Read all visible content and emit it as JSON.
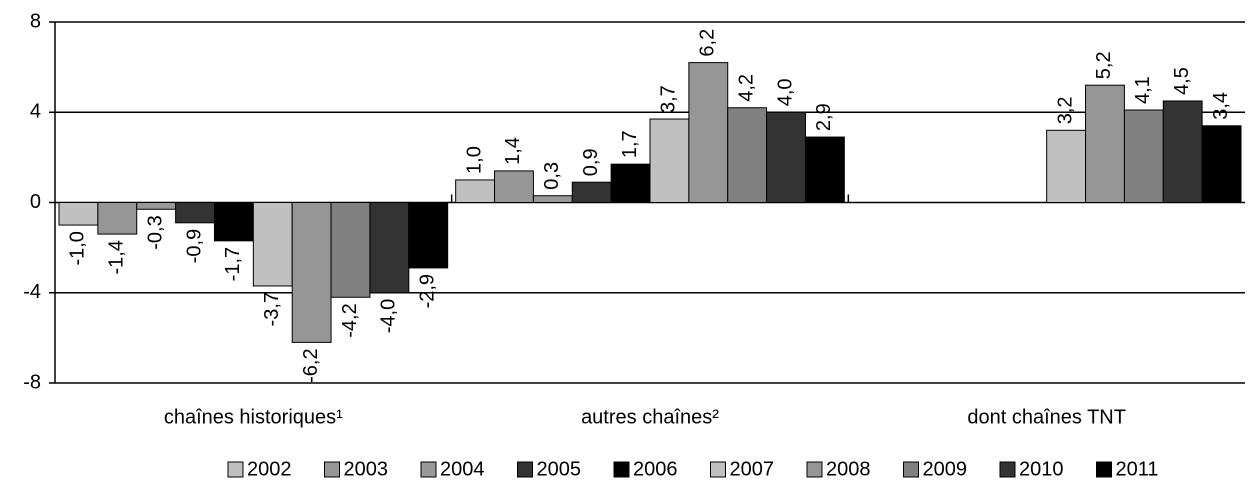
{
  "chart_data": {
    "type": "bar",
    "categories": [
      "chaînes historiques¹",
      "autres chaînes²",
      "dont chaînes TNT"
    ],
    "series": [
      {
        "name": "2002",
        "color": "#c0c0c0",
        "values": [
          -1.0,
          1.0,
          null
        ],
        "value_labels": [
          "-1,0",
          "1,0",
          null
        ]
      },
      {
        "name": "2003",
        "color": "#969696",
        "values": [
          -1.4,
          1.4,
          null
        ],
        "value_labels": [
          "-1,4",
          "1,4",
          null
        ]
      },
      {
        "name": "2004",
        "color": "#999999",
        "values": [
          -0.3,
          0.3,
          null
        ],
        "value_labels": [
          "-0,3",
          "0,3",
          null
        ]
      },
      {
        "name": "2005",
        "color": "#333333",
        "values": [
          -0.9,
          0.9,
          null
        ],
        "value_labels": [
          "-0,9",
          "0,9",
          null
        ]
      },
      {
        "name": "2006",
        "color": "#000000",
        "values": [
          -1.7,
          1.7,
          null
        ],
        "value_labels": [
          "-1,7",
          "1,7",
          null
        ]
      },
      {
        "name": "2007",
        "color": "#c0c0c0",
        "values": [
          -3.7,
          3.7,
          3.2
        ],
        "value_labels": [
          "-3,7",
          "3,7",
          "3,2"
        ]
      },
      {
        "name": "2008",
        "color": "#969696",
        "values": [
          -6.2,
          6.2,
          5.2
        ],
        "value_labels": [
          "-6,2",
          "6,2",
          "5,2"
        ]
      },
      {
        "name": "2009",
        "color": "#808080",
        "values": [
          -4.2,
          4.2,
          4.1
        ],
        "value_labels": [
          "-4,2",
          "4,2",
          "4,1"
        ]
      },
      {
        "name": "2010",
        "color": "#333333",
        "values": [
          -4.0,
          4.0,
          4.5
        ],
        "value_labels": [
          "-4,0",
          "4,0",
          "4,5"
        ]
      },
      {
        "name": "2011",
        "color": "#000000",
        "values": [
          -2.9,
          2.9,
          3.4
        ],
        "value_labels": [
          "-2,9",
          "2,9",
          "3,4"
        ]
      }
    ],
    "ylim": [
      -8,
      8
    ],
    "yticks": [
      -8,
      -4,
      0,
      4,
      8
    ],
    "grid": true
  }
}
